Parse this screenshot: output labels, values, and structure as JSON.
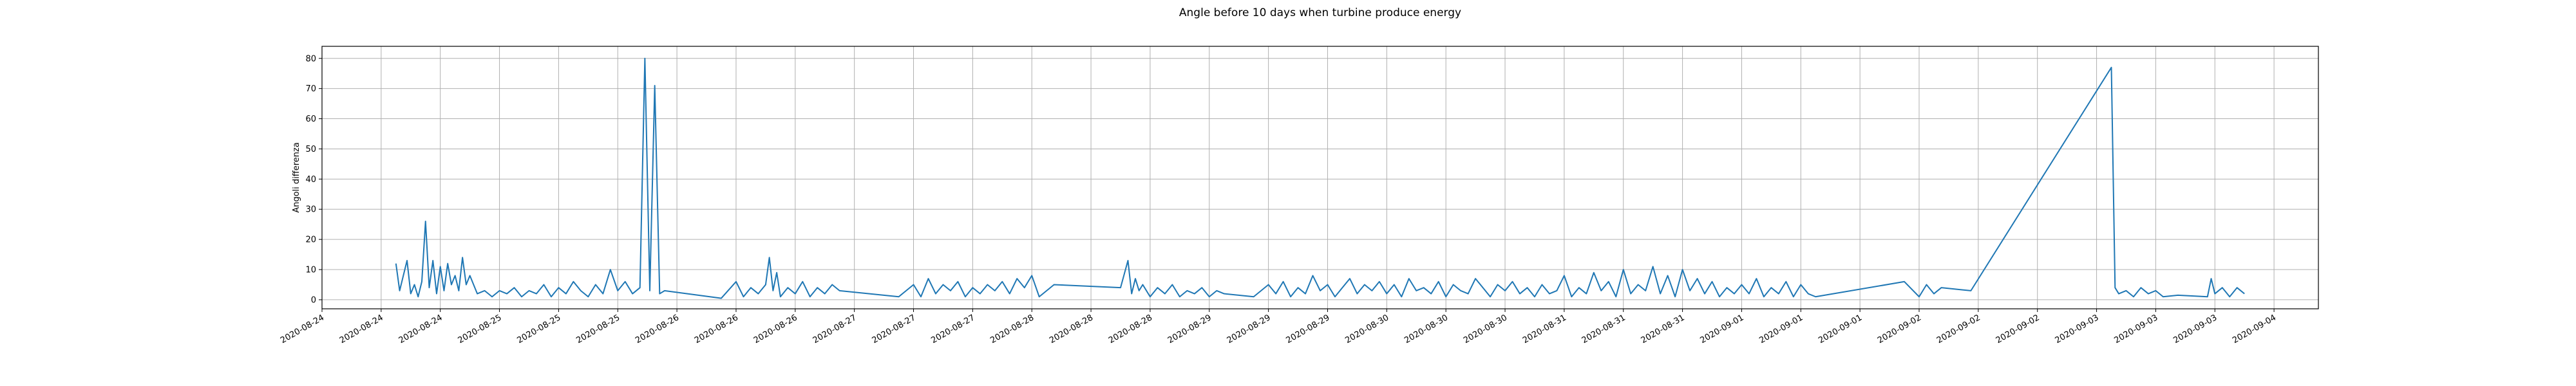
{
  "chart_data": {
    "type": "line",
    "title": "Angle before 10 days when turbine produce energy",
    "xlabel": "",
    "ylabel": "Angoli differenza",
    "ylim": [
      -3,
      84
    ],
    "yticks": [
      0,
      10,
      20,
      30,
      40,
      50,
      60,
      70,
      80
    ],
    "grid": true,
    "legend": "none",
    "xticks": [
      "2020-08-24",
      "2020-08-24",
      "2020-08-24",
      "2020-08-25",
      "2020-08-25",
      "2020-08-25",
      "2020-08-26",
      "2020-08-26",
      "2020-08-26",
      "2020-08-27",
      "2020-08-27",
      "2020-08-27",
      "2020-08-28",
      "2020-08-28",
      "2020-08-28",
      "2020-08-29",
      "2020-08-29",
      "2020-08-29",
      "2020-08-30",
      "2020-08-30",
      "2020-08-30",
      "2020-08-31",
      "2020-08-31",
      "2020-08-31",
      "2020-09-01",
      "2020-09-01",
      "2020-09-01",
      "2020-09-02",
      "2020-09-02",
      "2020-09-02",
      "2020-09-03",
      "2020-09-03",
      "2020-09-03",
      "2020-09-04"
    ],
    "series": [
      {
        "name": "",
        "color": "#1f77b4",
        "x": [
          "2020-08-24T10:00",
          "2020-08-24T10:30",
          "2020-08-24T11:00",
          "2020-08-24T11:30",
          "2020-08-24T12:00",
          "2020-08-24T12:30",
          "2020-08-24T13:00",
          "2020-08-24T13:30",
          "2020-08-24T14:00",
          "2020-08-24T14:30",
          "2020-08-24T15:00",
          "2020-08-24T15:30",
          "2020-08-24T16:00",
          "2020-08-24T16:30",
          "2020-08-24T17:00",
          "2020-08-24T17:30",
          "2020-08-24T18:00",
          "2020-08-24T18:30",
          "2020-08-24T19:00",
          "2020-08-24T19:30",
          "2020-08-24T20:00",
          "2020-08-24T21:00",
          "2020-08-24T22:00",
          "2020-08-24T23:00",
          "2020-08-25T00:00",
          "2020-08-25T01:00",
          "2020-08-25T02:00",
          "2020-08-25T03:00",
          "2020-08-25T04:00",
          "2020-08-25T05:00",
          "2020-08-25T06:00",
          "2020-08-25T07:00",
          "2020-08-25T08:00",
          "2020-08-25T09:00",
          "2020-08-25T10:00",
          "2020-08-25T11:00",
          "2020-08-25T12:00",
          "2020-08-25T13:00",
          "2020-08-25T14:00",
          "2020-08-25T15:00",
          "2020-08-25T16:00",
          "2020-08-25T17:00",
          "2020-08-25T18:00",
          "2020-08-25T19:00",
          "2020-08-25T19:40",
          "2020-08-25T20:20",
          "2020-08-25T21:00",
          "2020-08-25T21:40",
          "2020-08-25T22:20",
          "2020-08-26T06:00",
          "2020-08-26T08:00",
          "2020-08-26T09:00",
          "2020-08-26T10:00",
          "2020-08-26T11:00",
          "2020-08-26T12:00",
          "2020-08-26T12:30",
          "2020-08-26T13:00",
          "2020-08-26T13:30",
          "2020-08-26T14:00",
          "2020-08-26T15:00",
          "2020-08-26T16:00",
          "2020-08-26T17:00",
          "2020-08-26T18:00",
          "2020-08-26T19:00",
          "2020-08-26T20:00",
          "2020-08-26T21:00",
          "2020-08-26T22:00",
          "2020-08-27T06:00",
          "2020-08-27T07:00",
          "2020-08-27T08:00",
          "2020-08-27T09:00",
          "2020-08-27T10:00",
          "2020-08-27T11:00",
          "2020-08-27T12:00",
          "2020-08-27T13:00",
          "2020-08-27T14:00",
          "2020-08-27T15:00",
          "2020-08-27T16:00",
          "2020-08-27T17:00",
          "2020-08-27T18:00",
          "2020-08-27T19:00",
          "2020-08-27T20:00",
          "2020-08-27T21:00",
          "2020-08-27T22:00",
          "2020-08-27T23:00",
          "2020-08-28T00:00",
          "2020-08-28T01:00",
          "2020-08-28T02:00",
          "2020-08-28T03:00",
          "2020-08-28T12:00",
          "2020-08-28T13:00",
          "2020-08-28T13:30",
          "2020-08-28T14:00",
          "2020-08-28T14:30",
          "2020-08-28T15:00",
          "2020-08-28T16:00",
          "2020-08-28T17:00",
          "2020-08-28T18:00",
          "2020-08-28T19:00",
          "2020-08-28T20:00",
          "2020-08-28T21:00",
          "2020-08-28T22:00",
          "2020-08-28T23:00",
          "2020-08-29T00:00",
          "2020-08-29T01:00",
          "2020-08-29T02:00",
          "2020-08-29T06:00",
          "2020-08-29T08:00",
          "2020-08-29T09:00",
          "2020-08-29T10:00",
          "2020-08-29T11:00",
          "2020-08-29T12:00",
          "2020-08-29T13:00",
          "2020-08-29T14:00",
          "2020-08-29T15:00",
          "2020-08-29T16:00",
          "2020-08-29T17:00",
          "2020-08-29T18:00",
          "2020-08-29T19:00",
          "2020-08-29T20:00",
          "2020-08-29T21:00",
          "2020-08-29T22:00",
          "2020-08-29T23:00",
          "2020-08-30T00:00",
          "2020-08-30T01:00",
          "2020-08-30T02:00",
          "2020-08-30T03:00",
          "2020-08-30T04:00",
          "2020-08-30T05:00",
          "2020-08-30T06:00",
          "2020-08-30T07:00",
          "2020-08-30T08:00",
          "2020-08-30T09:00",
          "2020-08-30T10:00",
          "2020-08-30T11:00",
          "2020-08-30T12:00",
          "2020-08-30T13:00",
          "2020-08-30T14:00",
          "2020-08-30T15:00",
          "2020-08-30T16:00",
          "2020-08-30T17:00",
          "2020-08-30T18:00",
          "2020-08-30T19:00",
          "2020-08-30T20:00",
          "2020-08-30T21:00",
          "2020-08-30T22:00",
          "2020-08-30T23:00",
          "2020-08-31T00:00",
          "2020-08-31T01:00",
          "2020-08-31T02:00",
          "2020-08-31T03:00",
          "2020-08-31T04:00",
          "2020-08-31T05:00",
          "2020-08-31T06:00",
          "2020-08-31T07:00",
          "2020-08-31T08:00",
          "2020-08-31T09:00",
          "2020-08-31T10:00",
          "2020-08-31T11:00",
          "2020-08-31T12:00",
          "2020-08-31T13:00",
          "2020-08-31T14:00",
          "2020-08-31T15:00",
          "2020-08-31T16:00",
          "2020-08-31T17:00",
          "2020-08-31T18:00",
          "2020-08-31T19:00",
          "2020-08-31T20:00",
          "2020-08-31T21:00",
          "2020-08-31T22:00",
          "2020-08-31T23:00",
          "2020-09-01T00:00",
          "2020-09-01T01:00",
          "2020-09-01T02:00",
          "2020-09-01T03:00",
          "2020-09-01T04:00",
          "2020-09-01T05:00",
          "2020-09-01T06:00",
          "2020-09-01T07:00",
          "2020-09-01T08:00",
          "2020-09-01T09:00",
          "2020-09-01T10:00",
          "2020-09-01T22:00",
          "2020-09-02T00:00",
          "2020-09-02T01:00",
          "2020-09-02T02:00",
          "2020-09-02T03:00",
          "2020-09-02T07:00",
          "2020-09-03T02:00",
          "2020-09-03T02:30",
          "2020-09-03T03:00",
          "2020-09-03T04:00",
          "2020-09-03T05:00",
          "2020-09-03T06:00",
          "2020-09-03T07:00",
          "2020-09-03T08:00",
          "2020-09-03T09:00",
          "2020-09-03T11:00",
          "2020-09-03T15:00",
          "2020-09-03T15:30",
          "2020-09-03T16:00",
          "2020-09-03T17:00",
          "2020-09-03T18:00",
          "2020-09-03T19:00",
          "2020-09-03T20:00"
        ],
        "y": [
          12,
          3,
          8,
          13,
          2,
          5,
          1,
          6,
          26,
          4,
          13,
          2,
          11,
          3,
          12,
          5,
          8,
          3,
          14,
          5,
          8,
          2,
          3,
          1,
          3,
          2,
          4,
          1,
          3,
          2,
          5,
          1,
          4,
          2,
          6,
          3,
          1,
          5,
          2,
          10,
          3,
          6,
          2,
          4,
          80,
          3,
          71,
          2,
          3,
          0.5,
          6,
          1,
          4,
          2,
          5,
          14,
          3,
          9,
          1,
          4,
          2,
          6,
          1,
          4,
          2,
          5,
          3,
          1,
          3,
          5,
          1,
          7,
          2,
          5,
          3,
          6,
          1,
          4,
          2,
          5,
          3,
          6,
          2,
          7,
          4,
          8,
          1,
          3,
          5,
          4,
          13,
          2,
          7,
          3,
          5,
          1,
          4,
          2,
          5,
          1,
          3,
          2,
          4,
          1,
          3,
          2,
          1,
          5,
          2,
          6,
          1,
          4,
          2,
          8,
          3,
          5,
          1,
          4,
          7,
          2,
          5,
          3,
          6,
          2,
          5,
          1,
          7,
          3,
          4,
          2,
          6,
          1,
          5,
          3,
          2,
          7,
          4,
          1,
          5,
          3,
          6,
          2,
          4,
          1,
          5,
          2,
          3,
          8,
          1,
          4,
          2,
          9,
          3,
          6,
          1,
          10,
          2,
          5,
          3,
          11,
          2,
          8,
          1,
          10,
          3,
          7,
          2,
          6,
          1,
          4,
          2,
          5,
          2,
          7,
          1,
          4,
          2,
          6,
          1,
          5,
          2,
          1,
          6,
          1,
          5,
          2,
          4,
          3,
          77,
          4,
          2,
          3,
          1,
          4,
          2,
          3,
          1,
          1.5,
          1,
          7,
          2,
          4,
          1,
          4,
          2
        ]
      }
    ]
  }
}
